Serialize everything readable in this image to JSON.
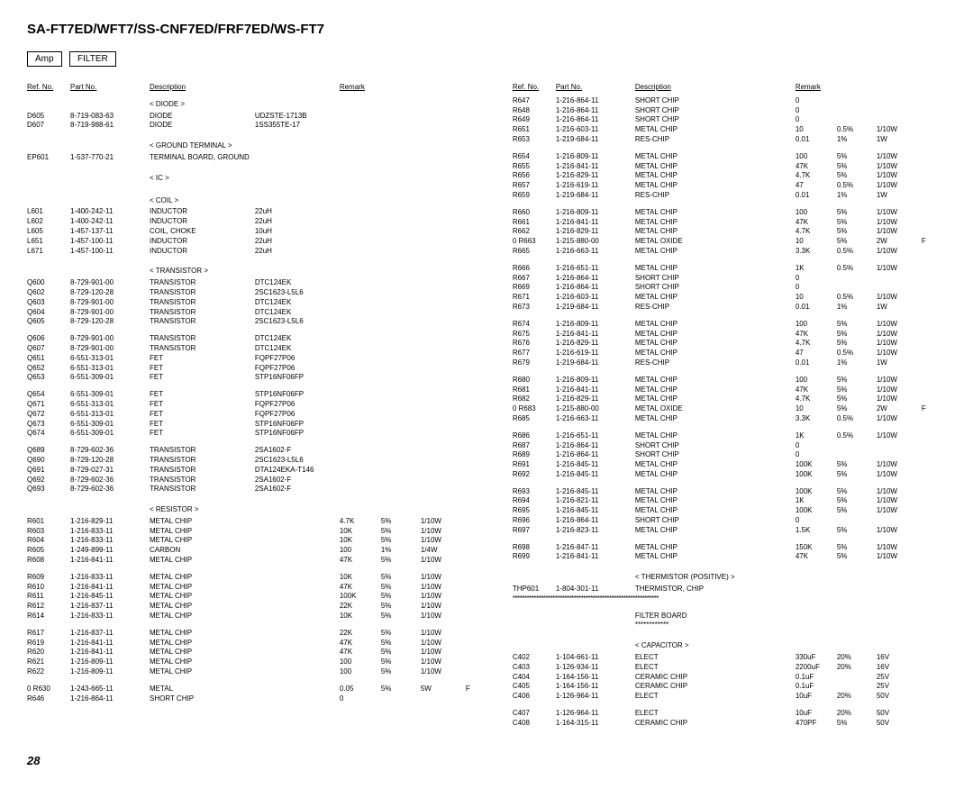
{
  "title": "SA-FT7ED/WFT7/SS-CNF7ED/FRF7ED/WS-FT7",
  "badges": [
    "Amp",
    "FILTER"
  ],
  "pagenum": "28",
  "headers": {
    "ref": "Ref. No.",
    "part": "Part No.",
    "desc": "Description",
    "remark": "Remark"
  },
  "left": [
    {
      "t": "section",
      "label": "< DIODE >"
    },
    {
      "t": "row",
      "ref": "D605",
      "pn": "8-719-083-63",
      "d1": "DIODE",
      "d2": "UDZSTE-1713B"
    },
    {
      "t": "row",
      "ref": "D607",
      "pn": "8-719-988-61",
      "d1": "DIODE",
      "d2": "1SS355TE-17"
    },
    {
      "t": "gap"
    },
    {
      "t": "section",
      "label": "< GROUND TERMINAL >"
    },
    {
      "t": "row",
      "ref": "EP601",
      "pn": "1-537-770-21",
      "d1": "TERMINAL BOARD, GROUND"
    },
    {
      "t": "gap"
    },
    {
      "t": "section",
      "label": "< IC >"
    },
    {
      "t": "gap"
    },
    {
      "t": "section",
      "label": "< COIL >"
    },
    {
      "t": "row",
      "ref": "L601",
      "pn": "1-400-242-11",
      "d1": "INDUCTOR",
      "d2": "22uH"
    },
    {
      "t": "row",
      "ref": "L602",
      "pn": "1-400-242-11",
      "d1": "INDUCTOR",
      "d2": "22uH"
    },
    {
      "t": "row",
      "ref": "L605",
      "pn": "1-457-137-11",
      "d1": "COIL, CHOKE",
      "d2": "10uH"
    },
    {
      "t": "row",
      "ref": "L651",
      "pn": "1-457-100-11",
      "d1": "INDUCTOR",
      "d2": "22uH"
    },
    {
      "t": "row",
      "ref": "L671",
      "pn": "1-457-100-11",
      "d1": "INDUCTOR",
      "d2": "22uH"
    },
    {
      "t": "gap"
    },
    {
      "t": "section",
      "label": "< TRANSISTOR >"
    },
    {
      "t": "row",
      "ref": "Q600",
      "pn": "8-729-901-00",
      "d1": "TRANSISTOR",
      "d2": "DTC124EK"
    },
    {
      "t": "row",
      "ref": "Q602",
      "pn": "8-729-120-28",
      "d1": "TRANSISTOR",
      "d2": "2SC1623-L5L6"
    },
    {
      "t": "row",
      "ref": "Q603",
      "pn": "8-729-901-00",
      "d1": "TRANSISTOR",
      "d2": "DTC124EK"
    },
    {
      "t": "row",
      "ref": "Q604",
      "pn": "8-729-901-00",
      "d1": "TRANSISTOR",
      "d2": "DTC124EK"
    },
    {
      "t": "row",
      "ref": "Q605",
      "pn": "8-729-120-28",
      "d1": "TRANSISTOR",
      "d2": "2SC1623-L5L6"
    },
    {
      "t": "gap"
    },
    {
      "t": "row",
      "ref": "Q606",
      "pn": "8-729-901-00",
      "d1": "TRANSISTOR",
      "d2": "DTC124EK"
    },
    {
      "t": "row",
      "ref": "Q607",
      "pn": "8-729-901-00",
      "d1": "TRANSISTOR",
      "d2": "DTC124EK"
    },
    {
      "t": "row",
      "ref": "Q651",
      "pn": "6-551-313-01",
      "d1": "FET",
      "d2": "FQPF27P06"
    },
    {
      "t": "row",
      "ref": "Q652",
      "pn": "6-551-313-01",
      "d1": "FET",
      "d2": "FQPF27P06"
    },
    {
      "t": "row",
      "ref": "Q653",
      "pn": "6-551-309-01",
      "d1": "FET",
      "d2": "STP16NF06FP"
    },
    {
      "t": "gap"
    },
    {
      "t": "row",
      "ref": "Q654",
      "pn": "6-551-309-01",
      "d1": "FET",
      "d2": "STP16NF06FP"
    },
    {
      "t": "row",
      "ref": "Q671",
      "pn": "6-551-313-01",
      "d1": "FET",
      "d2": "FQPF27P06"
    },
    {
      "t": "row",
      "ref": "Q672",
      "pn": "6-551-313-01",
      "d1": "FET",
      "d2": "FQPF27P06"
    },
    {
      "t": "row",
      "ref": "Q673",
      "pn": "6-551-309-01",
      "d1": "FET",
      "d2": "STP16NF06FP"
    },
    {
      "t": "row",
      "ref": "Q674",
      "pn": "6-551-309-01",
      "d1": "FET",
      "d2": "STP16NF06FP"
    },
    {
      "t": "gap"
    },
    {
      "t": "row",
      "ref": "Q689",
      "pn": "8-729-602-36",
      "d1": "TRANSISTOR",
      "d2": "2SA1602-F"
    },
    {
      "t": "row",
      "ref": "Q690",
      "pn": "8-729-120-28",
      "d1": "TRANSISTOR",
      "d2": "2SC1623-L5L6"
    },
    {
      "t": "row",
      "ref": "Q691",
      "pn": "8-729-027-31",
      "d1": "TRANSISTOR",
      "d2": "DTA124EKA-T146"
    },
    {
      "t": "row",
      "ref": "Q692",
      "pn": "8-729-602-36",
      "d1": "TRANSISTOR",
      "d2": "2SA1602-F"
    },
    {
      "t": "row",
      "ref": "Q693",
      "pn": "8-729-602-36",
      "d1": "TRANSISTOR",
      "d2": "2SA1602-F"
    },
    {
      "t": "gap"
    },
    {
      "t": "section",
      "label": "< RESISTOR >"
    },
    {
      "t": "row",
      "ref": "R601",
      "pn": "1-216-829-11",
      "d1": "METAL CHIP",
      "r1": "4.7K",
      "r2": "5%",
      "r3": "1/10W"
    },
    {
      "t": "row",
      "ref": "R603",
      "pn": "1-216-833-11",
      "d1": "METAL CHIP",
      "r1": "10K",
      "r2": "5%",
      "r3": "1/10W"
    },
    {
      "t": "row",
      "ref": "R604",
      "pn": "1-216-833-11",
      "d1": "METAL CHIP",
      "r1": "10K",
      "r2": "5%",
      "r3": "1/10W"
    },
    {
      "t": "row",
      "ref": "R605",
      "pn": "1-249-899-11",
      "d1": "CARBON",
      "r1": "100",
      "r2": "1%",
      "r3": "1/4W"
    },
    {
      "t": "row",
      "ref": "R608",
      "pn": "1-216-841-11",
      "d1": "METAL CHIP",
      "r1": "47K",
      "r2": "5%",
      "r3": "1/10W"
    },
    {
      "t": "gap"
    },
    {
      "t": "row",
      "ref": "R609",
      "pn": "1-216-833-11",
      "d1": "METAL CHIP",
      "r1": "10K",
      "r2": "5%",
      "r3": "1/10W"
    },
    {
      "t": "row",
      "ref": "R610",
      "pn": "1-216-841-11",
      "d1": "METAL CHIP",
      "r1": "47K",
      "r2": "5%",
      "r3": "1/10W"
    },
    {
      "t": "row",
      "ref": "R611",
      "pn": "1-216-845-11",
      "d1": "METAL CHIP",
      "r1": "100K",
      "r2": "5%",
      "r3": "1/10W"
    },
    {
      "t": "row",
      "ref": "R612",
      "pn": "1-216-837-11",
      "d1": "METAL CHIP",
      "r1": "22K",
      "r2": "5%",
      "r3": "1/10W"
    },
    {
      "t": "row",
      "ref": "R614",
      "pn": "1-216-833-11",
      "d1": "METAL CHIP",
      "r1": "10K",
      "r2": "5%",
      "r3": "1/10W"
    },
    {
      "t": "gap"
    },
    {
      "t": "row",
      "ref": "R617",
      "pn": "1-216-837-11",
      "d1": "METAL CHIP",
      "r1": "22K",
      "r2": "5%",
      "r3": "1/10W"
    },
    {
      "t": "row",
      "ref": "R619",
      "pn": "1-216-841-11",
      "d1": "METAL CHIP",
      "r1": "47K",
      "r2": "5%",
      "r3": "1/10W"
    },
    {
      "t": "row",
      "ref": "R620",
      "pn": "1-216-841-11",
      "d1": "METAL CHIP",
      "r1": "47K",
      "r2": "5%",
      "r3": "1/10W"
    },
    {
      "t": "row",
      "ref": "R621",
      "pn": "1-216-809-11",
      "d1": "METAL CHIP",
      "r1": "100",
      "r2": "5%",
      "r3": "1/10W"
    },
    {
      "t": "row",
      "ref": "R622",
      "pn": "1-216-809-11",
      "d1": "METAL CHIP",
      "r1": "100",
      "r2": "5%",
      "r3": "1/10W"
    },
    {
      "t": "gap"
    },
    {
      "t": "row",
      "ref": "0  R630",
      "pn": "1-243-665-11",
      "d1": "METAL",
      "r1": "0.05",
      "r2": "5%",
      "r3": "5W",
      "r4": "F"
    },
    {
      "t": "row",
      "ref": "R646",
      "pn": "1-216-864-11",
      "d1": "SHORT CHIP",
      "r1": "0"
    }
  ],
  "right": [
    {
      "t": "row",
      "ref": "R647",
      "pn": "1-216-864-11",
      "d1": "SHORT CHIP",
      "r1": "0"
    },
    {
      "t": "row",
      "ref": "R648",
      "pn": "1-216-864-11",
      "d1": "SHORT CHIP",
      "r1": "0"
    },
    {
      "t": "row",
      "ref": "R649",
      "pn": "1-216-864-11",
      "d1": "SHORT CHIP",
      "r1": "0"
    },
    {
      "t": "row",
      "ref": "R651",
      "pn": "1-216-603-11",
      "d1": "METAL CHIP",
      "r1": "10",
      "r2": "0.5%",
      "r3": "1/10W"
    },
    {
      "t": "row",
      "ref": "R653",
      "pn": "1-219-684-11",
      "d1": "RES-CHIP",
      "r1": "0.01",
      "r2": "1%",
      "r3": "1W"
    },
    {
      "t": "gap"
    },
    {
      "t": "row",
      "ref": "R654",
      "pn": "1-216-809-11",
      "d1": "METAL CHIP",
      "r1": "100",
      "r2": "5%",
      "r3": "1/10W"
    },
    {
      "t": "row",
      "ref": "R655",
      "pn": "1-216-841-11",
      "d1": "METAL CHIP",
      "r1": "47K",
      "r2": "5%",
      "r3": "1/10W"
    },
    {
      "t": "row",
      "ref": "R656",
      "pn": "1-216-829-11",
      "d1": "METAL CHIP",
      "r1": "4.7K",
      "r2": "5%",
      "r3": "1/10W"
    },
    {
      "t": "row",
      "ref": "R657",
      "pn": "1-216-619-11",
      "d1": "METAL CHIP",
      "r1": "47",
      "r2": "0.5%",
      "r3": "1/10W"
    },
    {
      "t": "row",
      "ref": "R659",
      "pn": "1-219-684-11",
      "d1": "RES-CHIP",
      "r1": "0.01",
      "r2": "1%",
      "r3": "1W"
    },
    {
      "t": "gap"
    },
    {
      "t": "row",
      "ref": "R660",
      "pn": "1-216-809-11",
      "d1": "METAL CHIP",
      "r1": "100",
      "r2": "5%",
      "r3": "1/10W"
    },
    {
      "t": "row",
      "ref": "R661",
      "pn": "1-216-841-11",
      "d1": "METAL CHIP",
      "r1": "47K",
      "r2": "5%",
      "r3": "1/10W"
    },
    {
      "t": "row",
      "ref": "R662",
      "pn": "1-216-829-11",
      "d1": "METAL CHIP",
      "r1": "4.7K",
      "r2": "5%",
      "r3": "1/10W"
    },
    {
      "t": "row",
      "ref": "0  R663",
      "pn": "1-215-880-00",
      "d1": "METAL OXIDE",
      "r1": "10",
      "r2": "5%",
      "r3": "2W",
      "r4": "F"
    },
    {
      "t": "row",
      "ref": "R665",
      "pn": "1-216-663-11",
      "d1": "METAL CHIP",
      "r1": "3.3K",
      "r2": "0.5%",
      "r3": "1/10W"
    },
    {
      "t": "gap"
    },
    {
      "t": "row",
      "ref": "R666",
      "pn": "1-216-651-11",
      "d1": "METAL CHIP",
      "r1": "1K",
      "r2": "0.5%",
      "r3": "1/10W"
    },
    {
      "t": "row",
      "ref": "R667",
      "pn": "1-216-864-11",
      "d1": "SHORT CHIP",
      "r1": "0"
    },
    {
      "t": "row",
      "ref": "R669",
      "pn": "1-216-864-11",
      "d1": "SHORT CHIP",
      "r1": "0"
    },
    {
      "t": "row",
      "ref": "R671",
      "pn": "1-216-603-11",
      "d1": "METAL CHIP",
      "r1": "10",
      "r2": "0.5%",
      "r3": "1/10W"
    },
    {
      "t": "row",
      "ref": "R673",
      "pn": "1-219-684-11",
      "d1": "RES-CHIP",
      "r1": "0.01",
      "r2": "1%",
      "r3": "1W"
    },
    {
      "t": "gap"
    },
    {
      "t": "row",
      "ref": "R674",
      "pn": "1-216-809-11",
      "d1": "METAL CHIP",
      "r1": "100",
      "r2": "5%",
      "r3": "1/10W"
    },
    {
      "t": "row",
      "ref": "R675",
      "pn": "1-216-841-11",
      "d1": "METAL CHIP",
      "r1": "47K",
      "r2": "5%",
      "r3": "1/10W"
    },
    {
      "t": "row",
      "ref": "R676",
      "pn": "1-216-829-11",
      "d1": "METAL CHIP",
      "r1": "4.7K",
      "r2": "5%",
      "r3": "1/10W"
    },
    {
      "t": "row",
      "ref": "R677",
      "pn": "1-216-619-11",
      "d1": "METAL CHIP",
      "r1": "47",
      "r2": "0.5%",
      "r3": "1/10W"
    },
    {
      "t": "row",
      "ref": "R679",
      "pn": "1-219-684-11",
      "d1": "RES-CHIP",
      "r1": "0.01",
      "r2": "1%",
      "r3": "1W"
    },
    {
      "t": "gap"
    },
    {
      "t": "row",
      "ref": "R680",
      "pn": "1-216-809-11",
      "d1": "METAL CHIP",
      "r1": "100",
      "r2": "5%",
      "r3": "1/10W"
    },
    {
      "t": "row",
      "ref": "R681",
      "pn": "1-216-841-11",
      "d1": "METAL CHIP",
      "r1": "47K",
      "r2": "5%",
      "r3": "1/10W"
    },
    {
      "t": "row",
      "ref": "R682",
      "pn": "1-216-829-11",
      "d1": "METAL CHIP",
      "r1": "4.7K",
      "r2": "5%",
      "r3": "1/10W"
    },
    {
      "t": "row",
      "ref": "0  R683",
      "pn": "1-215-880-00",
      "d1": "METAL OXIDE",
      "r1": "10",
      "r2": "5%",
      "r3": "2W",
      "r4": "F"
    },
    {
      "t": "row",
      "ref": "R685",
      "pn": "1-216-663-11",
      "d1": "METAL CHIP",
      "r1": "3.3K",
      "r2": "0.5%",
      "r3": "1/10W"
    },
    {
      "t": "gap"
    },
    {
      "t": "row",
      "ref": "R686",
      "pn": "1-216-651-11",
      "d1": "METAL CHIP",
      "r1": "1K",
      "r2": "0.5%",
      "r3": "1/10W"
    },
    {
      "t": "row",
      "ref": "R687",
      "pn": "1-216-864-11",
      "d1": "SHORT CHIP",
      "r1": "0"
    },
    {
      "t": "row",
      "ref": "R689",
      "pn": "1-216-864-11",
      "d1": "SHORT CHIP",
      "r1": "0"
    },
    {
      "t": "row",
      "ref": "R691",
      "pn": "1-216-845-11",
      "d1": "METAL CHIP",
      "r1": "100K",
      "r2": "5%",
      "r3": "1/10W"
    },
    {
      "t": "row",
      "ref": "R692",
      "pn": "1-216-845-11",
      "d1": "METAL CHIP",
      "r1": "100K",
      "r2": "5%",
      "r3": "1/10W"
    },
    {
      "t": "gap"
    },
    {
      "t": "row",
      "ref": "R693",
      "pn": "1-216-845-11",
      "d1": "METAL CHIP",
      "r1": "100K",
      "r2": "5%",
      "r3": "1/10W"
    },
    {
      "t": "row",
      "ref": "R694",
      "pn": "1-216-821-11",
      "d1": "METAL CHIP",
      "r1": "1K",
      "r2": "5%",
      "r3": "1/10W"
    },
    {
      "t": "row",
      "ref": "R695",
      "pn": "1-216-845-11",
      "d1": "METAL CHIP",
      "r1": "100K",
      "r2": "5%",
      "r3": "1/10W"
    },
    {
      "t": "row",
      "ref": "R696",
      "pn": "1-216-864-11",
      "d1": "SHORT CHIP",
      "r1": "0"
    },
    {
      "t": "row",
      "ref": "R697",
      "pn": "1-216-823-11",
      "d1": "METAL CHIP",
      "r1": "1.5K",
      "r2": "5%",
      "r3": "1/10W"
    },
    {
      "t": "gap"
    },
    {
      "t": "row",
      "ref": "R698",
      "pn": "1-216-847-11",
      "d1": "METAL CHIP",
      "r1": "150K",
      "r2": "5%",
      "r3": "1/10W"
    },
    {
      "t": "row",
      "ref": "R699",
      "pn": "1-216-841-11",
      "d1": "METAL CHIP",
      "r1": "47K",
      "r2": "5%",
      "r3": "1/10W"
    },
    {
      "t": "gap"
    },
    {
      "t": "section",
      "label": "< THERMISTOR (POSITIVE) >"
    },
    {
      "t": "row",
      "ref": "THP601",
      "pn": "1-804-301-11",
      "d1": "THERMISTOR, CHIP"
    },
    {
      "t": "stars"
    },
    {
      "t": "gap"
    },
    {
      "t": "center",
      "label": "FILTER BOARD"
    },
    {
      "t": "center",
      "label": "************"
    },
    {
      "t": "gap"
    },
    {
      "t": "section",
      "label": "< CAPACITOR >"
    },
    {
      "t": "row",
      "ref": "C402",
      "pn": "1-104-661-11",
      "d1": "ELECT",
      "r1": "330uF",
      "r2": "20%",
      "r3": "16V"
    },
    {
      "t": "row",
      "ref": "C403",
      "pn": "1-126-934-11",
      "d1": "ELECT",
      "r1": "2200uF",
      "r2": "20%",
      "r3": "16V"
    },
    {
      "t": "row",
      "ref": "C404",
      "pn": "1-164-156-11",
      "d1": "CERAMIC CHIP",
      "r1": "0.1uF",
      "r2": "",
      "r3": "25V"
    },
    {
      "t": "row",
      "ref": "C405",
      "pn": "1-164-156-11",
      "d1": "CERAMIC CHIP",
      "r1": "0.1uF",
      "r2": "",
      "r3": "25V"
    },
    {
      "t": "row",
      "ref": "C406",
      "pn": "1-126-964-11",
      "d1": "ELECT",
      "r1": "10uF",
      "r2": "20%",
      "r3": "50V"
    },
    {
      "t": "gap"
    },
    {
      "t": "row",
      "ref": "C407",
      "pn": "1-126-964-11",
      "d1": "ELECT",
      "r1": "10uF",
      "r2": "20%",
      "r3": "50V"
    },
    {
      "t": "row",
      "ref": "C408",
      "pn": "1-164-315-11",
      "d1": "CERAMIC CHIP",
      "r1": "470PF",
      "r2": "5%",
      "r3": "50V"
    }
  ]
}
